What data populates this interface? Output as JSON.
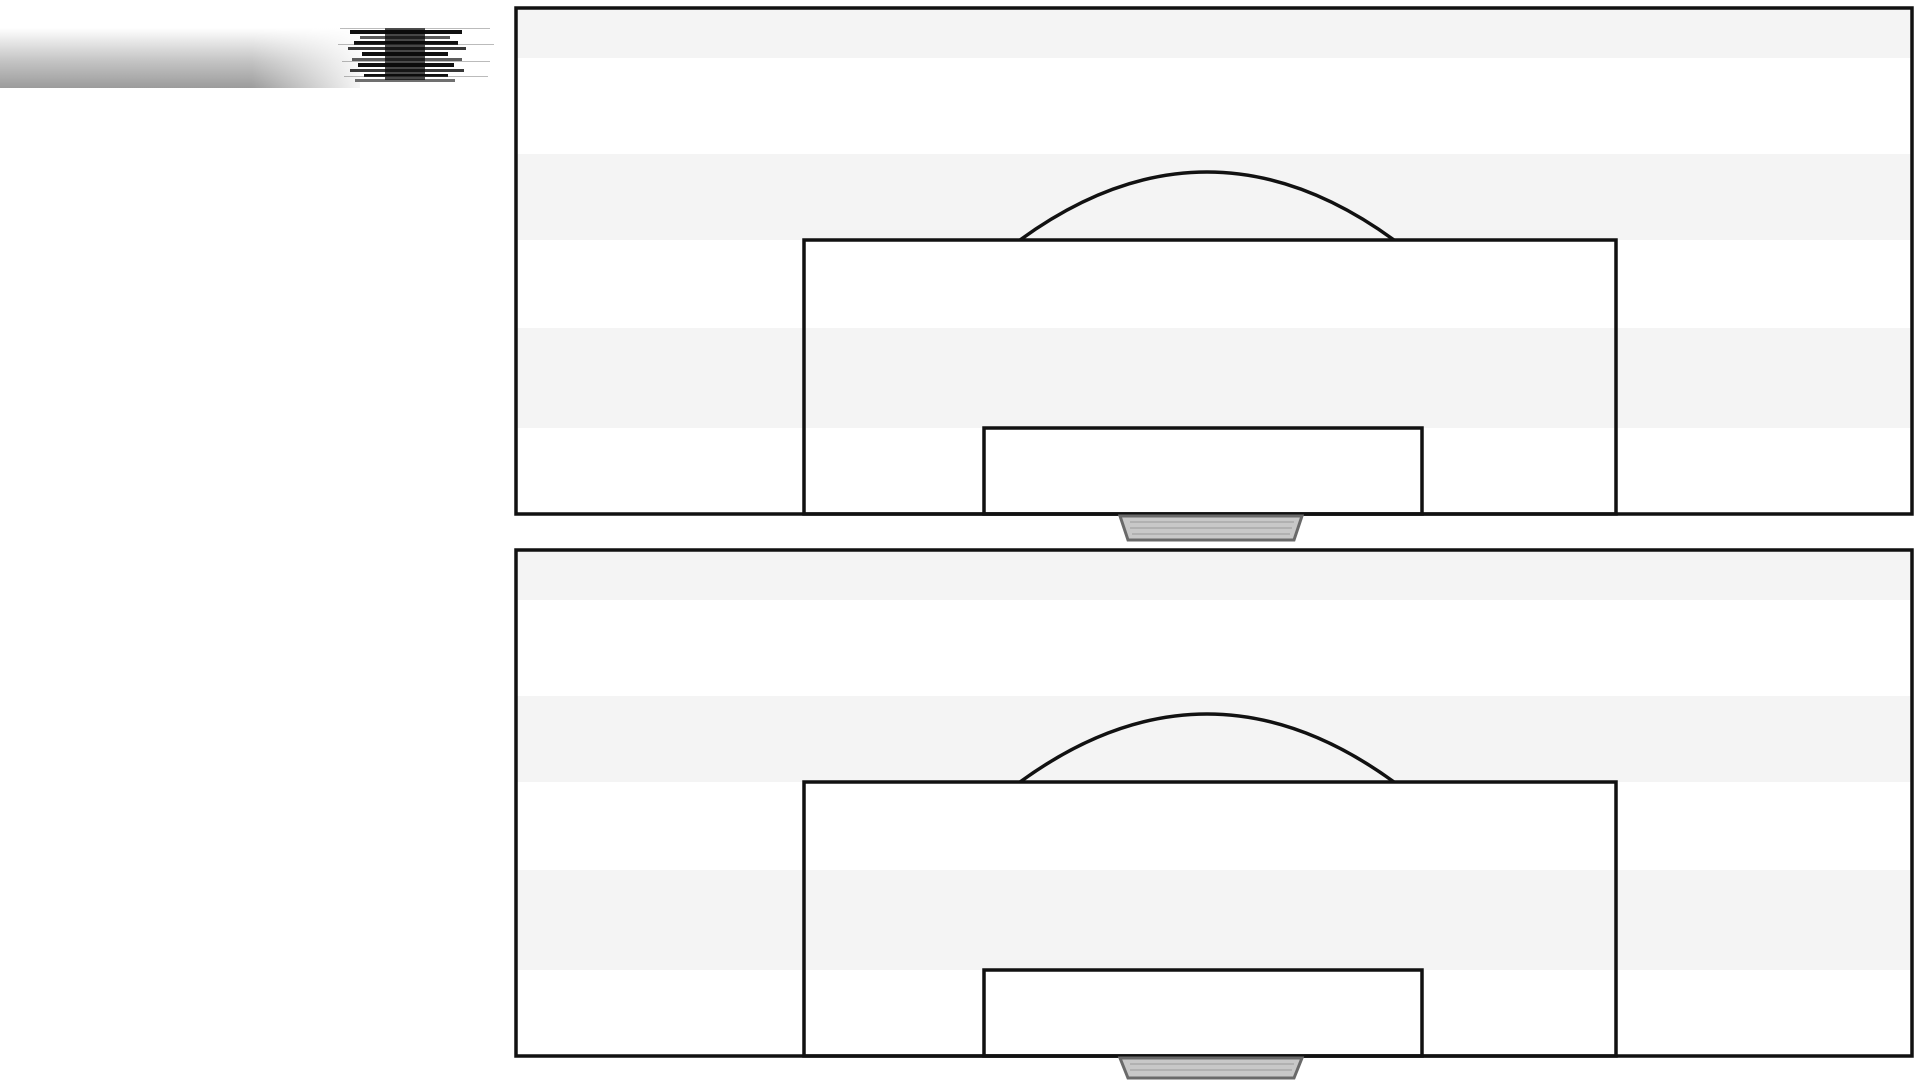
{
  "colors": {
    "line": "#111111",
    "stripe_light": "#f4f4f4",
    "stripe_white": "#ffffff",
    "net": "#7a7a7a",
    "header_gray": "#a8a8a8"
  },
  "header": {
    "logo_icon": "motion-blurred-logo-icon"
  },
  "pitches": [
    {
      "id": "top",
      "goal_icon": "goal-net-icon"
    },
    {
      "id": "bottom",
      "goal_icon": "goal-net-icon"
    }
  ]
}
